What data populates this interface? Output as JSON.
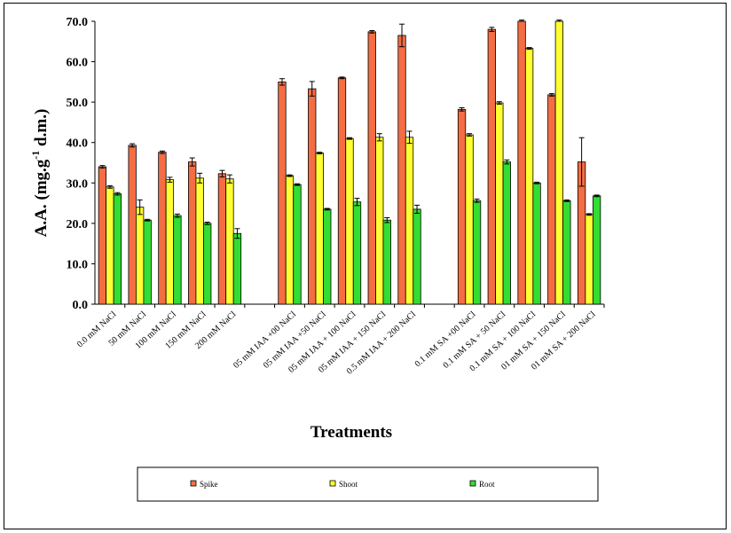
{
  "chart_data": {
    "type": "bar",
    "title": "",
    "xlabel": "Treatments",
    "ylabel": "A.A. (mg.g-1 d.m.)",
    "ylabel_parts": {
      "main": "A.A. (mg.g",
      "sup": "-1",
      "tail": " d.m.)"
    },
    "ylim": [
      0,
      70
    ],
    "yticks": [
      "0.0",
      "10.0",
      "20.0",
      "30.0",
      "40.0",
      "50.0",
      "60.0",
      "70.0"
    ],
    "grid": false,
    "legend_position": "bottom",
    "categories": [
      "0.0 mM NaCl",
      "50 mM NaCl",
      "100 mM NaCl",
      "150 mM NaCl",
      "200 mM NaCl",
      "",
      "05 mM IAA +00 NaCl",
      "05 mM IAA +50 NaCl",
      "05 mM IAA + 100 NaCl",
      "05 mM IAA + 150 NaCl",
      "0.5 mM IAA + 200 NaCl",
      "",
      "0.1 mM SA +00 NaCl",
      "0.1 mM SA + 50 NaCl",
      "0.1 mM SA + 100 NaCl",
      "01 mM SA + 150 NaCl",
      "01 mM SA + 200 NaCl"
    ],
    "series": [
      {
        "name": "Spike",
        "color": "#F46D43",
        "values": [
          34.0,
          39.3,
          37.6,
          35.2,
          32.3,
          null,
          55.0,
          53.3,
          56.0,
          67.4,
          66.5,
          null,
          48.2,
          68.0,
          70.5,
          51.8,
          35.2
        ],
        "errors": [
          0.3,
          0.4,
          0.3,
          1.0,
          0.8,
          null,
          0.8,
          1.8,
          0.2,
          0.3,
          2.8,
          null,
          0.4,
          0.5,
          0.2,
          0.3,
          6.0
        ]
      },
      {
        "name": "Shoot",
        "color": "#FFFF33",
        "values": [
          29.0,
          24.0,
          30.8,
          31.2,
          31.0,
          null,
          31.8,
          37.4,
          41.0,
          41.3,
          41.3,
          null,
          41.9,
          49.8,
          63.3,
          70.5,
          22.2
        ],
        "errors": [
          0.3,
          1.8,
          0.6,
          1.2,
          1.0,
          null,
          0.2,
          0.2,
          0.2,
          0.9,
          1.5,
          null,
          0.3,
          0.3,
          0.2,
          0.2,
          0.2
        ]
      },
      {
        "name": "Root",
        "color": "#33DD33",
        "values": [
          27.3,
          20.8,
          21.9,
          20.0,
          17.5,
          null,
          29.6,
          23.5,
          25.3,
          20.8,
          23.5,
          null,
          25.6,
          35.2,
          30.0,
          25.6,
          26.8
        ],
        "errors": [
          0.3,
          0.2,
          0.4,
          0.3,
          1.2,
          null,
          0.2,
          0.2,
          0.9,
          0.6,
          1.0,
          null,
          0.4,
          0.5,
          0.2,
          0.2,
          0.2
        ]
      }
    ]
  }
}
